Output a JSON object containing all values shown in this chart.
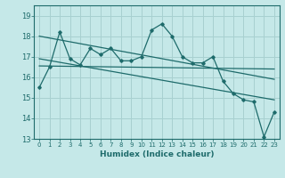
{
  "title": "",
  "xlabel": "Humidex (Indice chaleur)",
  "background_color": "#c5e8e8",
  "grid_color": "#a8d0d0",
  "line_color": "#1e6b6b",
  "xlim": [
    -0.5,
    23.5
  ],
  "ylim": [
    13,
    19.5
  ],
  "yticks": [
    13,
    14,
    15,
    16,
    17,
    18,
    19
  ],
  "xticks": [
    0,
    1,
    2,
    3,
    4,
    5,
    6,
    7,
    8,
    9,
    10,
    11,
    12,
    13,
    14,
    15,
    16,
    17,
    18,
    19,
    20,
    21,
    22,
    23
  ],
  "series1_x": [
    0,
    1,
    2,
    3,
    4,
    5,
    6,
    7,
    8,
    9,
    10,
    11,
    12,
    13,
    14,
    15,
    16,
    17,
    18,
    19,
    20,
    21,
    22,
    23
  ],
  "series1_y": [
    15.5,
    16.5,
    18.2,
    16.9,
    16.6,
    17.4,
    17.1,
    17.4,
    16.8,
    16.8,
    17.0,
    18.3,
    18.6,
    18.0,
    17.0,
    16.7,
    16.7,
    17.0,
    15.8,
    15.2,
    14.9,
    14.8,
    13.1,
    14.3
  ],
  "series2_x": [
    0,
    23
  ],
  "series2_y": [
    18.0,
    15.9
  ],
  "series3_x": [
    0,
    23
  ],
  "series3_y": [
    16.55,
    16.4
  ],
  "series4_x": [
    0,
    23
  ],
  "series4_y": [
    16.9,
    14.9
  ]
}
